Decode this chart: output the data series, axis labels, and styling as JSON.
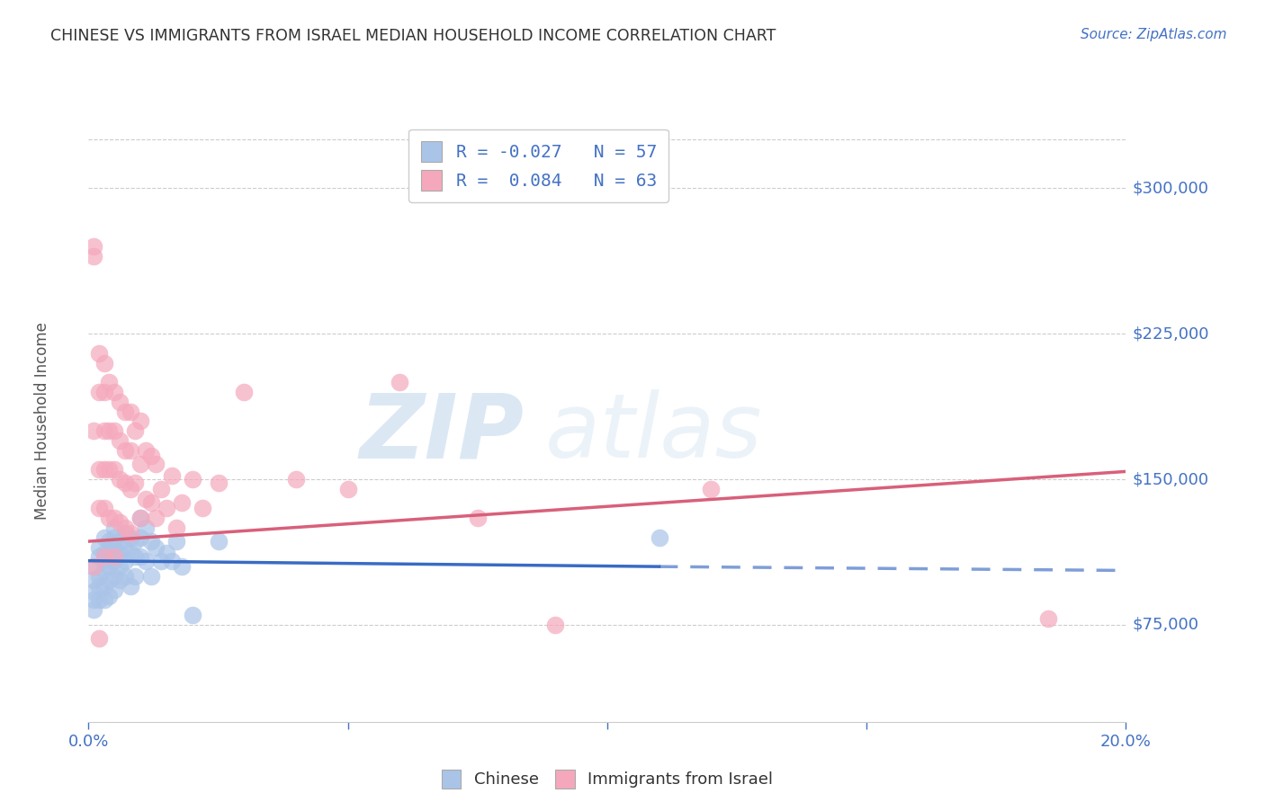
{
  "title": "CHINESE VS IMMIGRANTS FROM ISRAEL MEDIAN HOUSEHOLD INCOME CORRELATION CHART",
  "source": "Source: ZipAtlas.com",
  "ylabel": "Median Household Income",
  "y_ticks": [
    75000,
    150000,
    225000,
    300000
  ],
  "y_tick_labels": [
    "$75,000",
    "$150,000",
    "$225,000",
    "$300,000"
  ],
  "y_min": 25000,
  "y_max": 335000,
  "x_min": 0.0,
  "x_max": 0.2,
  "watermark_zip": "ZIP",
  "watermark_atlas": "atlas",
  "legend_label1": "R = -0.027   N = 57",
  "legend_label2": "R =  0.084   N = 63",
  "chinese_color": "#aac4e8",
  "israel_color": "#f5a8bc",
  "chinese_line_color": "#3a6bc4",
  "israel_line_color": "#d8607a",
  "axis_label_color": "#4472c4",
  "title_color": "#333333",
  "grid_color": "#cccccc",
  "background_color": "#ffffff",
  "chinese_trendline_x0": 0.0,
  "chinese_trendline_y0": 108000,
  "chinese_trendline_x1": 0.11,
  "chinese_trendline_y1": 105000,
  "chinese_trendline_dash_x0": 0.11,
  "chinese_trendline_dash_y0": 105000,
  "chinese_trendline_dash_x1": 0.2,
  "chinese_trendline_dash_y1": 103000,
  "israel_trendline_x0": 0.0,
  "israel_trendline_y0": 118000,
  "israel_trendline_x1": 0.2,
  "israel_trendline_y1": 154000,
  "chinese_x": [
    0.001,
    0.001,
    0.001,
    0.001,
    0.001,
    0.002,
    0.002,
    0.002,
    0.002,
    0.002,
    0.003,
    0.003,
    0.003,
    0.003,
    0.003,
    0.003,
    0.004,
    0.004,
    0.004,
    0.004,
    0.004,
    0.005,
    0.005,
    0.005,
    0.005,
    0.005,
    0.005,
    0.006,
    0.006,
    0.006,
    0.006,
    0.007,
    0.007,
    0.007,
    0.007,
    0.008,
    0.008,
    0.008,
    0.009,
    0.009,
    0.009,
    0.01,
    0.01,
    0.01,
    0.011,
    0.011,
    0.012,
    0.012,
    0.013,
    0.014,
    0.015,
    0.016,
    0.017,
    0.018,
    0.02,
    0.025,
    0.11
  ],
  "chinese_y": [
    105000,
    98000,
    92000,
    88000,
    83000,
    110000,
    115000,
    100000,
    95000,
    88000,
    120000,
    112000,
    108000,
    103000,
    95000,
    88000,
    118000,
    112000,
    105000,
    98000,
    90000,
    125000,
    120000,
    115000,
    108000,
    100000,
    93000,
    118000,
    112000,
    105000,
    98000,
    122000,
    115000,
    108000,
    100000,
    120000,
    112000,
    95000,
    118000,
    110000,
    100000,
    130000,
    120000,
    110000,
    125000,
    108000,
    118000,
    100000,
    115000,
    108000,
    112000,
    108000,
    118000,
    105000,
    80000,
    118000,
    120000
  ],
  "israel_x": [
    0.001,
    0.001,
    0.001,
    0.001,
    0.002,
    0.002,
    0.002,
    0.002,
    0.002,
    0.003,
    0.003,
    0.003,
    0.003,
    0.003,
    0.003,
    0.004,
    0.004,
    0.004,
    0.004,
    0.005,
    0.005,
    0.005,
    0.005,
    0.005,
    0.006,
    0.006,
    0.006,
    0.006,
    0.007,
    0.007,
    0.007,
    0.007,
    0.008,
    0.008,
    0.008,
    0.008,
    0.009,
    0.009,
    0.01,
    0.01,
    0.01,
    0.011,
    0.011,
    0.012,
    0.012,
    0.013,
    0.013,
    0.014,
    0.015,
    0.016,
    0.017,
    0.018,
    0.02,
    0.022,
    0.025,
    0.03,
    0.04,
    0.05,
    0.06,
    0.075,
    0.09,
    0.12,
    0.185
  ],
  "israel_y": [
    270000,
    265000,
    175000,
    105000,
    215000,
    195000,
    155000,
    135000,
    68000,
    210000,
    195000,
    175000,
    155000,
    135000,
    110000,
    200000,
    175000,
    155000,
    130000,
    195000,
    175000,
    155000,
    130000,
    110000,
    190000,
    170000,
    150000,
    128000,
    185000,
    165000,
    148000,
    125000,
    185000,
    165000,
    145000,
    122000,
    175000,
    148000,
    180000,
    158000,
    130000,
    165000,
    140000,
    162000,
    138000,
    158000,
    130000,
    145000,
    135000,
    152000,
    125000,
    138000,
    150000,
    135000,
    148000,
    195000,
    150000,
    145000,
    200000,
    130000,
    75000,
    145000,
    78000
  ]
}
